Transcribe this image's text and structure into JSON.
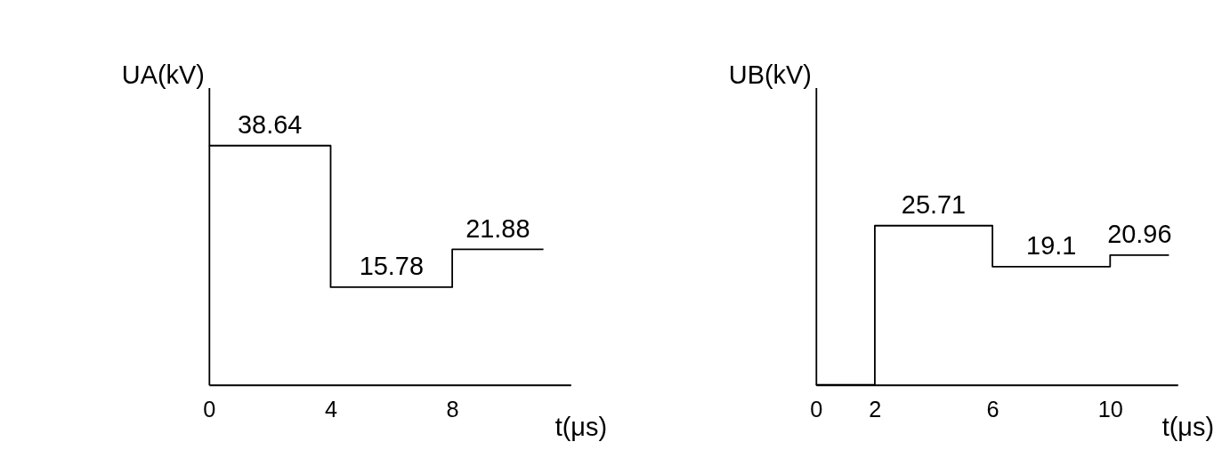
{
  "chart_data": [
    {
      "type": "step",
      "xlabel": "t(μs)",
      "ylabel": "UA(kV)",
      "x": [
        0,
        4,
        8,
        11
      ],
      "series": [
        {
          "color": "#000000",
          "values": [
            38.64,
            15.78,
            21.88,
            21.88
          ],
          "value_labels": [
            "38.64",
            "15.78",
            "21.88",
            null
          ]
        }
      ],
      "xlim": [
        0,
        11.9
      ],
      "xticks": [
        0,
        4,
        8
      ],
      "ylim": [
        0,
        48
      ],
      "tick_labels": "x",
      "grid": false,
      "line_style": "solid",
      "marker": "none"
    },
    {
      "type": "step",
      "xlabel": "t(μs)",
      "ylabel": "UB(kV)",
      "x": [
        0,
        2,
        6,
        10,
        12
      ],
      "series": [
        {
          "color": "#000000",
          "values": [
            0,
            25.71,
            19.1,
            20.96,
            20.96
          ],
          "value_labels": [
            null,
            "25.71",
            "19.1",
            "20.96",
            null
          ]
        }
      ],
      "xlim": [
        0,
        12.3
      ],
      "xticks": [
        0,
        2,
        6,
        10
      ],
      "ylim": [
        0,
        48
      ],
      "tick_labels": "x",
      "grid": false,
      "line_style": "solid",
      "marker": "none"
    }
  ]
}
